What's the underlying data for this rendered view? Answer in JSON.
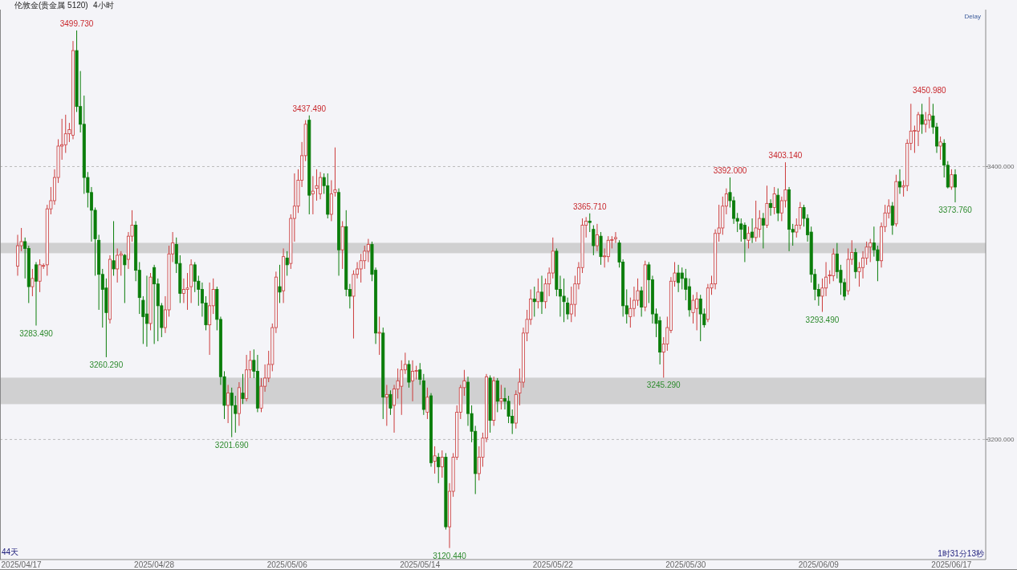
{
  "chart_data": {
    "type": "candlestick",
    "title": "伦敦金(贵金属 5120)",
    "subtitle": "4小时",
    "categories": [
      null,
      "2025/04/17",
      null,
      null,
      null,
      null,
      null,
      null,
      null,
      null,
      null,
      null,
      null,
      null,
      null,
      null,
      null,
      null,
      null,
      null,
      null,
      null,
      null,
      null,
      null,
      null,
      null,
      null,
      null,
      null,
      null,
      null,
      null,
      null,
      null,
      null,
      null,
      "2025/04/28",
      null,
      null,
      null,
      null,
      null,
      null,
      null,
      null,
      null,
      null,
      null,
      null,
      null,
      null,
      null,
      null,
      null,
      null,
      null,
      null,
      null,
      null,
      null,
      null,
      null,
      null,
      null,
      null,
      null,
      null,
      null,
      null,
      null,
      null,
      null,
      "2025/05/06",
      null,
      null,
      null,
      null,
      null,
      null,
      null,
      null,
      null,
      null,
      null,
      null,
      null,
      null,
      null,
      null,
      null,
      null,
      null,
      null,
      null,
      null,
      null,
      null,
      null,
      null,
      null,
      null,
      null,
      null,
      null,
      null,
      null,
      null,
      null,
      "2025/05/14",
      null,
      null,
      null,
      null,
      null,
      null,
      null,
      null,
      null,
      null,
      null,
      null,
      null,
      null,
      null,
      null,
      null,
      null,
      null,
      null,
      null,
      null,
      null,
      null,
      null,
      null,
      null,
      null,
      null,
      null,
      null,
      null,
      null,
      null,
      null,
      "2025/05/22",
      null,
      null,
      null,
      null,
      null,
      null,
      null,
      null,
      null,
      null,
      null,
      null,
      null,
      null,
      null,
      null,
      null,
      null,
      null,
      null,
      null,
      null,
      null,
      null,
      null,
      null,
      null,
      null,
      null,
      null,
      null,
      null,
      null,
      null,
      null,
      "2025/05/30",
      null,
      null,
      null,
      null,
      null,
      null,
      null,
      null,
      null,
      null,
      null,
      null,
      null,
      null,
      null,
      null,
      null,
      null,
      null,
      null,
      null,
      null,
      null,
      null,
      null,
      null,
      null,
      null,
      null,
      null,
      null,
      null,
      null,
      null,
      null,
      "2025/06/09",
      null,
      null,
      null,
      null,
      null,
      null,
      null,
      null,
      null,
      null,
      null,
      null,
      null,
      null,
      null,
      null,
      null,
      null,
      null,
      null,
      null,
      null,
      null,
      null,
      null,
      null,
      null,
      null,
      null,
      null,
      null,
      null,
      null,
      null,
      null,
      "2025/06/17",
      null
    ],
    "ohlc": [
      [
        3327,
        3350,
        3320,
        3342
      ],
      [
        3342,
        3355,
        3338,
        3345
      ],
      [
        3345,
        3348,
        3318,
        3340
      ],
      [
        3340,
        3342,
        3300,
        3312
      ],
      [
        3312,
        3325,
        3305,
        3318
      ],
      [
        3328,
        3330,
        3283.49,
        3316
      ],
      [
        3316,
        3332,
        3308,
        3328
      ],
      [
        3327,
        3329,
        3325,
        3327.5
      ],
      [
        3328,
        3372,
        3320,
        3369
      ],
      [
        3369,
        3385,
        3365,
        3375
      ],
      [
        3375,
        3398,
        3372,
        3392
      ],
      [
        3392,
        3420,
        3388,
        3415
      ],
      [
        3415,
        3435,
        3405,
        3416
      ],
      [
        3416,
        3438,
        3410,
        3424
      ],
      [
        3424,
        3432,
        3418,
        3427
      ],
      [
        3423,
        3492,
        3420,
        3485
      ],
      [
        3485,
        3499.73,
        3440,
        3444
      ],
      [
        3444,
        3470,
        3425,
        3431
      ],
      [
        3431,
        3452,
        3380,
        3392
      ],
      [
        3392,
        3396,
        3370,
        3381
      ],
      [
        3381,
        3385,
        3345,
        3368
      ],
      [
        3368,
        3370,
        3320,
        3347
      ],
      [
        3346,
        3350,
        3295,
        3321
      ],
      [
        3321,
        3325,
        3282,
        3310
      ],
      [
        3311,
        3318,
        3260.29,
        3293
      ],
      [
        3288,
        3335,
        3285,
        3332
      ],
      [
        3331,
        3360,
        3320,
        3325
      ],
      [
        3325,
        3340,
        3315,
        3335
      ],
      [
        3335,
        3338,
        3320,
        3336
      ],
      [
        3335,
        3336,
        3300,
        3328
      ],
      [
        3332,
        3352,
        3325,
        3349
      ],
      [
        3349,
        3368,
        3345,
        3357
      ],
      [
        3357,
        3360,
        3316,
        3324
      ],
      [
        3324,
        3330,
        3292,
        3304
      ],
      [
        3302,
        3305,
        3270,
        3290
      ],
      [
        3292,
        3320,
        3268,
        3285
      ],
      [
        3285,
        3322,
        3280,
        3319
      ],
      [
        3326,
        3328,
        3270,
        3314
      ],
      [
        3314,
        3318,
        3272,
        3298
      ],
      [
        3298,
        3300,
        3275,
        3282
      ],
      [
        3282,
        3305,
        3278,
        3295
      ],
      [
        3295,
        3342,
        3290,
        3336
      ],
      [
        3336,
        3352,
        3330,
        3344
      ],
      [
        3343,
        3348,
        3322,
        3329
      ],
      [
        3329,
        3335,
        3300,
        3307
      ],
      [
        3307,
        3318,
        3300,
        3310
      ],
      [
        3310,
        3322,
        3295,
        3311
      ],
      [
        3312,
        3332,
        3300,
        3328
      ],
      [
        3328,
        3330,
        3308,
        3316
      ],
      [
        3316,
        3320,
        3298,
        3310
      ],
      [
        3310,
        3315,
        3290,
        3300
      ],
      [
        3300,
        3305,
        3280,
        3284
      ],
      [
        3284,
        3315,
        3262,
        3298
      ],
      [
        3298,
        3318,
        3292,
        3310
      ],
      [
        3310,
        3312,
        3280,
        3288
      ],
      [
        3288,
        3290,
        3240,
        3246
      ],
      [
        3246,
        3250,
        3215,
        3225
      ],
      [
        3225,
        3240,
        3212,
        3234
      ],
      [
        3234,
        3238,
        3201.69,
        3225
      ],
      [
        3225,
        3232,
        3205,
        3219
      ],
      [
        3219,
        3242,
        3210,
        3238
      ],
      [
        3234,
        3248,
        3226,
        3230
      ],
      [
        3230,
        3262,
        3228,
        3251
      ],
      [
        3251,
        3265,
        3245,
        3258
      ],
      [
        3258,
        3266,
        3245,
        3250
      ],
      [
        3250,
        3262,
        3220,
        3223
      ],
      [
        3223,
        3245,
        3220,
        3239
      ],
      [
        3239,
        3255,
        3235,
        3245
      ],
      [
        3245,
        3265,
        3242,
        3255
      ],
      [
        3255,
        3285,
        3250,
        3282
      ],
      [
        3282,
        3323,
        3278,
        3319
      ],
      [
        3312,
        3328,
        3300,
        3308
      ],
      [
        3309,
        3340,
        3300,
        3334
      ],
      [
        3333,
        3338,
        3320,
        3328
      ],
      [
        3329,
        3365,
        3325,
        3362
      ],
      [
        3362,
        3395,
        3345,
        3371
      ],
      [
        3371,
        3398,
        3366,
        3390
      ],
      [
        3390,
        3418,
        3385,
        3408
      ],
      [
        3408,
        3434,
        3404,
        3431
      ],
      [
        3434,
        3437.49,
        3365,
        3379
      ],
      [
        3380,
        3393,
        3365,
        3382
      ],
      [
        3384,
        3398,
        3375,
        3386
      ],
      [
        3380,
        3396,
        3376,
        3392
      ],
      [
        3392,
        3395,
        3380,
        3386
      ],
      [
        3386,
        3395,
        3362,
        3365
      ],
      [
        3365,
        3390,
        3360,
        3380
      ],
      [
        3381,
        3414,
        3378,
        3383
      ],
      [
        3381,
        3384,
        3320,
        3339
      ],
      [
        3339,
        3360,
        3325,
        3356
      ],
      [
        3356,
        3368,
        3305,
        3310
      ],
      [
        3310,
        3314,
        3296,
        3305
      ],
      [
        3305,
        3324,
        3274,
        3321
      ],
      [
        3321,
        3330,
        3318,
        3325
      ],
      [
        3325,
        3336,
        3315,
        3331
      ],
      [
        3331,
        3342,
        3325,
        3338
      ],
      [
        3338,
        3347,
        3330,
        3343
      ],
      [
        3343,
        3345,
        3316,
        3321
      ],
      [
        3324,
        3326,
        3270,
        3278
      ],
      [
        3278,
        3290,
        3262,
        3278.5
      ],
      [
        3278,
        3282,
        3215,
        3231
      ],
      [
        3231,
        3240,
        3210,
        3233
      ],
      [
        3233,
        3236,
        3218,
        3223
      ],
      [
        3225,
        3240,
        3205,
        3237
      ],
      [
        3237,
        3252,
        3230,
        3243
      ],
      [
        3239,
        3258,
        3218,
        3251
      ],
      [
        3251,
        3263.6,
        3248,
        3255
      ],
      [
        3255,
        3258,
        3238,
        3242
      ],
      [
        3243,
        3258,
        3228,
        3250
      ],
      [
        3250,
        3254,
        3244,
        3250.5
      ],
      [
        3251,
        3256,
        3240,
        3244
      ],
      [
        3243,
        3248,
        3218,
        3222
      ],
      [
        3220,
        3238,
        3215,
        3231
      ],
      [
        3232,
        3234,
        3180,
        3183
      ],
      [
        3184,
        3195,
        3175,
        3188
      ],
      [
        3187,
        3190,
        3168,
        3180
      ],
      [
        3180,
        3192,
        3172,
        3187
      ],
      [
        3187,
        3190,
        3134,
        3136
      ],
      [
        3136,
        3168,
        3120.44,
        3162
      ],
      [
        3162,
        3190,
        3158,
        3187
      ],
      [
        3187,
        3225,
        3185,
        3220
      ],
      [
        3220,
        3240,
        3215,
        3238
      ],
      [
        3238,
        3251,
        3232,
        3243
      ],
      [
        3242,
        3246,
        3210,
        3219
      ],
      [
        3219,
        3225,
        3198,
        3206
      ],
      [
        3206,
        3210,
        3160,
        3175
      ],
      [
        3175,
        3195,
        3170,
        3187
      ],
      [
        3187,
        3205,
        3180,
        3201
      ],
      [
        3201,
        3248,
        3198,
        3246
      ],
      [
        3245,
        3247,
        3205,
        3214
      ],
      [
        3214,
        3246,
        3210,
        3243
      ],
      [
        3243,
        3245,
        3220,
        3228
      ],
      [
        3228,
        3240,
        3222,
        3230
      ],
      [
        3230,
        3238,
        3222,
        3228
      ],
      [
        3228,
        3232,
        3212,
        3217
      ],
      [
        3217,
        3222,
        3204,
        3212
      ],
      [
        3212,
        3236,
        3208,
        3233
      ],
      [
        3234,
        3252,
        3225,
        3242
      ],
      [
        3242,
        3282,
        3238,
        3278
      ],
      [
        3278,
        3295,
        3272,
        3288
      ],
      [
        3288,
        3310,
        3284,
        3303
      ],
      [
        3303,
        3312,
        3290,
        3301
      ],
      [
        3301,
        3318,
        3296,
        3308
      ],
      [
        3308,
        3320,
        3292,
        3301
      ],
      [
        3301,
        3318,
        3296,
        3314
      ],
      [
        3314,
        3326,
        3305,
        3322
      ],
      [
        3322,
        3348,
        3318,
        3338
      ],
      [
        3338,
        3340,
        3305,
        3310
      ],
      [
        3310,
        3320,
        3290,
        3305
      ],
      [
        3305,
        3318,
        3286,
        3301
      ],
      [
        3300,
        3304,
        3288,
        3292
      ],
      [
        3292,
        3312,
        3286,
        3299
      ],
      [
        3299,
        3320,
        3290,
        3314
      ],
      [
        3314,
        3330,
        3310,
        3326
      ],
      [
        3326,
        3362,
        3322,
        3357
      ],
      [
        3357,
        3363,
        3348,
        3360
      ],
      [
        3360,
        3365.71,
        3352,
        3359
      ],
      [
        3354,
        3357,
        3335,
        3342
      ],
      [
        3342,
        3358,
        3338,
        3350
      ],
      [
        3349,
        3352,
        3328,
        3334
      ],
      [
        3334,
        3340,
        3326,
        3334.5
      ],
      [
        3334,
        3349,
        3330,
        3346
      ],
      [
        3346,
        3349,
        3340,
        3346.5
      ],
      [
        3347,
        3352,
        3344,
        3348
      ],
      [
        3344,
        3346,
        3326,
        3330
      ],
      [
        3330,
        3332,
        3290,
        3298
      ],
      [
        3298,
        3310,
        3285,
        3292
      ],
      [
        3290,
        3304,
        3282,
        3296
      ],
      [
        3296,
        3312,
        3290,
        3302
      ],
      [
        3302,
        3318,
        3298,
        3309
      ],
      [
        3309,
        3312,
        3290,
        3297
      ],
      [
        3297,
        3331,
        3294,
        3328
      ],
      [
        3328,
        3330,
        3300,
        3317
      ],
      [
        3317,
        3320,
        3285,
        3292
      ],
      [
        3292,
        3296,
        3275,
        3285
      ],
      [
        3287,
        3290,
        3255,
        3264
      ],
      [
        3264,
        3275,
        3245.29,
        3270
      ],
      [
        3270,
        3290,
        3265,
        3282
      ],
      [
        3280,
        3319,
        3278,
        3316
      ],
      [
        3316,
        3330,
        3312,
        3322
      ],
      [
        3322,
        3328,
        3308,
        3315
      ],
      [
        3322,
        3326,
        3310,
        3318
      ],
      [
        3318,
        3325,
        3302,
        3310
      ],
      [
        3312,
        3318,
        3290,
        3295
      ],
      [
        3293,
        3306,
        3285,
        3302
      ],
      [
        3296,
        3308,
        3280,
        3303
      ],
      [
        3303,
        3306,
        3272,
        3292
      ],
      [
        3292,
        3296,
        3282,
        3284
      ],
      [
        3288,
        3314,
        3286,
        3311
      ],
      [
        3311,
        3320,
        3306,
        3314
      ],
      [
        3314,
        3354,
        3310,
        3351
      ],
      [
        3351,
        3372,
        3345,
        3355
      ],
      [
        3355,
        3378,
        3350,
        3371
      ],
      [
        3371,
        3384,
        3365,
        3380
      ],
      [
        3381,
        3392.0,
        3370,
        3375
      ],
      [
        3375,
        3378,
        3358,
        3362
      ],
      [
        3362,
        3366,
        3352,
        3360
      ],
      [
        3358,
        3362,
        3345,
        3354
      ],
      [
        3357,
        3359,
        3330,
        3347
      ],
      [
        3346,
        3356,
        3340,
        3351
      ],
      [
        3352,
        3362,
        3344,
        3348
      ],
      [
        3348,
        3375,
        3345,
        3355
      ],
      [
        3354,
        3368,
        3348,
        3362
      ],
      [
        3362,
        3366,
        3340,
        3357
      ],
      [
        3357,
        3386,
        3355,
        3373
      ],
      [
        3373,
        3376,
        3364,
        3370
      ],
      [
        3370,
        3385,
        3365,
        3380
      ],
      [
        3379,
        3384,
        3360,
        3366
      ],
      [
        3366,
        3378,
        3360,
        3375
      ],
      [
        3375,
        3403.14,
        3370,
        3383
      ],
      [
        3383,
        3385,
        3338,
        3354
      ],
      [
        3354,
        3358,
        3342,
        3352
      ],
      [
        3352,
        3362,
        3348,
        3357
      ],
      [
        3357,
        3374,
        3354,
        3370
      ],
      [
        3370,
        3372,
        3356,
        3362
      ],
      [
        3362,
        3365,
        3345,
        3350
      ],
      [
        3352,
        3356,
        3315,
        3321
      ],
      [
        3321,
        3325,
        3302,
        3310
      ],
      [
        3310,
        3314,
        3298,
        3305
      ],
      [
        3305,
        3318,
        3293.49,
        3311
      ],
      [
        3311,
        3330,
        3305,
        3319
      ],
      [
        3320,
        3324,
        3314,
        3320.5
      ],
      [
        3320,
        3340,
        3316,
        3336
      ],
      [
        3336,
        3344,
        3318,
        3323
      ],
      [
        3324,
        3328,
        3306,
        3315
      ],
      [
        3315,
        3318,
        3302,
        3305
      ],
      [
        3309,
        3340,
        3306,
        3332
      ],
      [
        3332,
        3346,
        3328,
        3337
      ],
      [
        3337,
        3340,
        3318,
        3323
      ],
      [
        3323,
        3330,
        3312,
        3326
      ],
      [
        3326,
        3338,
        3318,
        3333
      ],
      [
        3333,
        3345,
        3328,
        3341
      ],
      [
        3341,
        3347,
        3330,
        3344
      ],
      [
        3344,
        3356,
        3334,
        3339
      ],
      [
        3339,
        3342,
        3316,
        3331
      ],
      [
        3331,
        3359,
        3326,
        3356
      ],
      [
        3356,
        3372,
        3352,
        3366
      ],
      [
        3366,
        3376,
        3362,
        3371
      ],
      [
        3371,
        3374,
        3350,
        3357
      ],
      [
        3358,
        3394,
        3356,
        3389
      ],
      [
        3389,
        3398,
        3380,
        3385
      ],
      [
        3385,
        3390,
        3378,
        3386
      ],
      [
        3386,
        3420,
        3382,
        3417
      ],
      [
        3417,
        3446,
        3412,
        3426
      ],
      [
        3426,
        3430,
        3410,
        3426.5
      ],
      [
        3426,
        3440,
        3415,
        3438
      ],
      [
        3438,
        3446,
        3424,
        3431
      ],
      [
        3431,
        3440,
        3425,
        3434
      ],
      [
        3434,
        3450.98,
        3428,
        3438
      ],
      [
        3437,
        3446,
        3424,
        3429
      ],
      [
        3429,
        3432,
        3410,
        3415
      ],
      [
        3415,
        3422,
        3405,
        3418
      ],
      [
        3417,
        3420,
        3392,
        3401
      ],
      [
        3401,
        3404,
        3384,
        3385
      ],
      [
        3385,
        3398,
        3383,
        3394
      ],
      [
        3394,
        3398,
        3373.76,
        3385
      ]
    ],
    "ylim": [
      3112,
      3515
    ],
    "yticks": [
      {
        "value": 3200,
        "label": "3200.000"
      },
      {
        "value": 3400,
        "label": "3400.000"
      }
    ],
    "grid": "y",
    "bands": [
      {
        "axis": "y",
        "from": 3225.9,
        "to": 3245.3,
        "color": "#c0c0c0"
      },
      {
        "axis": "y",
        "from": 3336.5,
        "to": 3344.1,
        "color": "#c0c0c0"
      }
    ],
    "annotations": [
      "Delay",
      "44天",
      "1时31分13秒",
      {
        "text": "3499.730",
        "y": 3499.73
      },
      {
        "text": "3283.490",
        "y": 3283.49
      },
      {
        "text": "3260.290",
        "y": 3260.29
      },
      {
        "text": "3201.690",
        "y": 3201.69
      },
      {
        "text": "3437.490",
        "y": 3437.49
      },
      {
        "text": "3120.440",
        "y": 3120.44
      },
      {
        "text": "3365.710",
        "y": 3365.71
      },
      {
        "text": "3245.290",
        "y": 3245.29
      },
      {
        "text": "3392.000",
        "y": 3392.0
      },
      {
        "text": "3403.140",
        "y": 3403.14
      },
      {
        "text": "3293.490",
        "y": 3293.49
      },
      {
        "text": "3450.980",
        "y": 3450.98
      },
      {
        "text": "3373.760",
        "y": 3373.76
      }
    ]
  }
}
